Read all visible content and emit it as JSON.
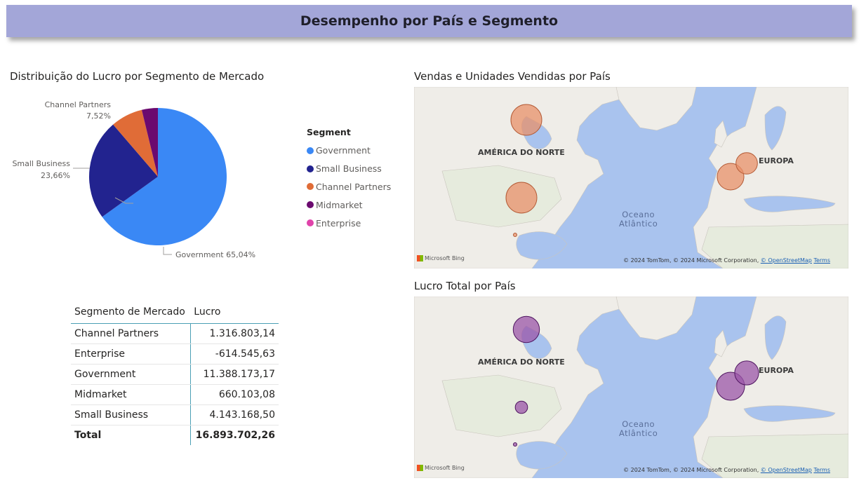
{
  "header": {
    "title": "Desempenho por País e Segmento"
  },
  "pie": {
    "title": "Distribuição do Lucro por Segmento de Mercado",
    "labels": {
      "channel_partners_name": "Channel Partners",
      "channel_partners_pct": "7,52%",
      "small_business_name": "Small Business",
      "small_business_pct": "23,66%",
      "government": "Government 65,04%"
    }
  },
  "legend": {
    "title": "Segment",
    "items": [
      {
        "label": "Government",
        "color": "#3a88f5"
      },
      {
        "label": "Small Business",
        "color": "#22238f"
      },
      {
        "label": "Channel Partners",
        "color": "#e06c37"
      },
      {
        "label": "Midmarket",
        "color": "#6b0a6f"
      },
      {
        "label": "Enterprise",
        "color": "#e043aa"
      }
    ]
  },
  "table": {
    "headers": [
      "Segmento de Mercado",
      "Lucro"
    ],
    "rows": [
      [
        "Channel Partners",
        "1.316.803,14"
      ],
      [
        "Enterprise",
        "-614.545,63"
      ],
      [
        "Government",
        "11.388.173,17"
      ],
      [
        "Midmarket",
        "660.103,08"
      ],
      [
        "Small Business",
        "4.143.168,50"
      ]
    ],
    "total": [
      "Total",
      "16.893.702,26"
    ]
  },
  "maps": [
    {
      "title": "Vendas e Unidades Vendidas por País",
      "bubble_color": "#e8906a",
      "bubble_stroke": "#b35a35",
      "bubbles": [
        {
          "region": "Canada",
          "size": 1.0
        },
        {
          "region": "United States",
          "size": 1.0
        },
        {
          "region": "France",
          "size": 0.95
        },
        {
          "region": "Germany",
          "size": 0.85
        },
        {
          "region": "Mexico",
          "size": 0.15
        }
      ]
    },
    {
      "title": "Lucro Total por País",
      "bubble_color": "#9b55a8",
      "bubble_stroke": "#4f1660",
      "bubbles": [
        {
          "region": "Canada",
          "size": 0.85
        },
        {
          "region": "United States",
          "size": 0.4
        },
        {
          "region": "France",
          "size": 1.0
        },
        {
          "region": "Germany",
          "size": 0.95
        },
        {
          "region": "Mexico",
          "size": 0.12
        }
      ]
    }
  ],
  "map_common": {
    "label_na": "AMÉRICA DO NORTE",
    "label_eu": "EUROPA",
    "ocean_line1": "Oceano",
    "ocean_line2": "Atlântico",
    "bing": "Microsoft Bing",
    "copyright_text": "© 2024 TomTom, © 2024 Microsoft Corporation, ",
    "osm": "© OpenStreetMap",
    "terms": "Terms"
  },
  "chart_data": [
    {
      "type": "pie",
      "title": "Distribuição do Lucro por Segmento de Mercado",
      "legend_title": "Segment",
      "legend_position": "right",
      "categories": [
        "Government",
        "Small Business",
        "Channel Partners",
        "Midmarket",
        "Enterprise"
      ],
      "values": [
        65.04,
        23.66,
        7.52,
        3.78,
        0
      ],
      "colors": [
        "#3a88f5",
        "#22238f",
        "#e06c37",
        "#6b0a6f",
        "#e043aa"
      ]
    },
    {
      "type": "table",
      "columns": [
        "Segmento de Mercado",
        "Lucro"
      ],
      "rows": [
        [
          "Channel Partners",
          1316803.14
        ],
        [
          "Enterprise",
          -614545.63
        ],
        [
          "Government",
          11388173.17
        ],
        [
          "Midmarket",
          660103.08
        ],
        [
          "Small Business",
          4143168.5
        ]
      ],
      "total": 16893702.26
    }
  ]
}
